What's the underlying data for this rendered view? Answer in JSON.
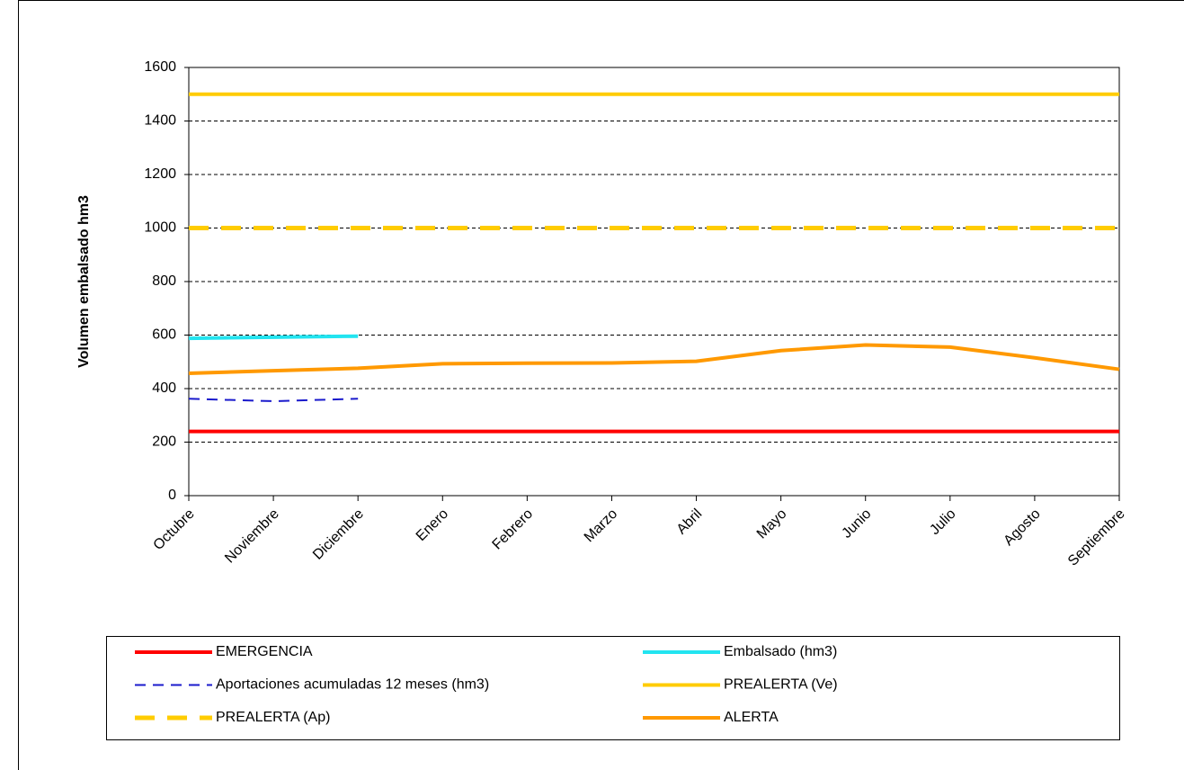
{
  "chart_data": {
    "type": "line",
    "y_label": "Volumen embalsado hm3",
    "categories": [
      "Octubre",
      "Noviembre",
      "Diciembre",
      "Enero",
      "Febrero",
      "Marzo",
      "Abril",
      "Mayo",
      "Junio",
      "Julio",
      "Agosto",
      "Septiembre"
    ],
    "ylim": [
      0,
      1600
    ],
    "yticks": [
      0,
      200,
      400,
      600,
      800,
      1000,
      1200,
      1400,
      1600
    ],
    "grid": true,
    "series": [
      {
        "name": "EMERGENCIA",
        "color": "#ff0000",
        "linestyle": "solid",
        "values": [
          240,
          240,
          240,
          240,
          240,
          240,
          240,
          240,
          240,
          240,
          240,
          240
        ]
      },
      {
        "name": "Embalsado (hm3)",
        "color": "#22e4f0",
        "linestyle": "solid",
        "values": [
          588,
          592,
          596,
          null,
          null,
          null,
          null,
          null,
          null,
          null,
          null,
          null
        ]
      },
      {
        "name": "Aportaciones acumuladas 12 meses (hm3)",
        "color": "#1a1acc",
        "linestyle": "dashed",
        "values": [
          362,
          353,
          362,
          null,
          null,
          null,
          null,
          null,
          null,
          null,
          null,
          null
        ]
      },
      {
        "name": "PREALERTA (Ve)",
        "color": "#ffcc00",
        "linestyle": "solid",
        "values": [
          1500,
          1500,
          1500,
          1500,
          1500,
          1500,
          1500,
          1500,
          1500,
          1500,
          1500,
          1500
        ]
      },
      {
        "name": "PREALERTA (Ap)",
        "color": "#ffcc00",
        "linestyle": "thick-dashed",
        "values": [
          1000,
          1000,
          1000,
          1000,
          1000,
          1000,
          1000,
          1000,
          1000,
          1000,
          1000,
          1000
        ]
      },
      {
        "name": "ALERTA",
        "color": "#ff9900",
        "linestyle": "solid",
        "values": [
          457,
          467,
          476,
          493,
          495,
          496,
          502,
          542,
          563,
          555,
          515,
          472
        ]
      }
    ]
  }
}
